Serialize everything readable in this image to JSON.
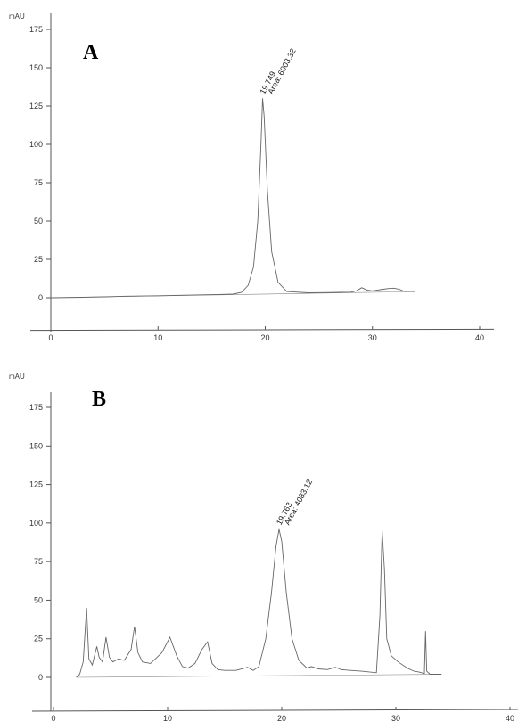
{
  "chart_data": [
    {
      "type": "line",
      "panel_label": "A",
      "y_unit": "mAU",
      "xlim": [
        0,
        40
      ],
      "ylim": [
        -10,
        185
      ],
      "x_ticks": [
        0,
        10,
        20,
        30,
        40
      ],
      "y_ticks": [
        0,
        25,
        50,
        75,
        100,
        125,
        150,
        175
      ],
      "peak_annotations": [
        {
          "rt": "19.749",
          "area": "Area: 6003.32",
          "x": 19.749,
          "y": 130
        }
      ],
      "series": [
        {
          "x": [
            0,
            3,
            5,
            7,
            10,
            13,
            15,
            17,
            17.8,
            18.4,
            18.9,
            19.3,
            19.6,
            19.749,
            19.9,
            20.2,
            20.6,
            21.2,
            22,
            24,
            26,
            28,
            28.5,
            29,
            29.5,
            30,
            31,
            31.5,
            32,
            32.5,
            33,
            34
          ],
          "y": [
            0,
            0.3,
            0.6,
            1.0,
            1.3,
            1.7,
            2.0,
            2.3,
            3.5,
            8,
            20,
            50,
            100,
            130,
            118,
            70,
            30,
            10,
            4,
            3.2,
            3.4,
            3.6,
            4.5,
            6.5,
            5,
            4.5,
            5.5,
            6,
            6.2,
            5.5,
            4,
            4
          ]
        }
      ]
    },
    {
      "type": "line",
      "panel_label": "B",
      "y_unit": "mAU",
      "xlim": [
        0,
        40
      ],
      "ylim": [
        -10,
        185
      ],
      "x_ticks": [
        0,
        10,
        20,
        30,
        40
      ],
      "y_ticks": [
        0,
        25,
        50,
        75,
        100,
        125,
        150,
        175
      ],
      "peak_annotations": [
        {
          "rt": "19.763",
          "area": "Area: 4083.12",
          "x": 19.763,
          "y": 96
        }
      ],
      "series": [
        {
          "x": [
            2,
            2.3,
            2.6,
            2.9,
            3.1,
            3.4,
            3.8,
            4.0,
            4.3,
            4.6,
            4.9,
            5.2,
            5.7,
            6.2,
            6.8,
            7.1,
            7.4,
            7.8,
            8.5,
            9.5,
            10.2,
            10.8,
            11.3,
            11.8,
            12.4,
            13.0,
            13.5,
            13.9,
            14.4,
            15,
            16,
            17,
            17.5,
            18.0,
            18.6,
            19.1,
            19.5,
            19.763,
            20.0,
            20.4,
            20.9,
            21.5,
            22.2,
            22.6,
            23.2,
            24,
            24.7,
            25.2,
            26,
            27,
            28.3,
            28.6,
            28.8,
            29.0,
            29.2,
            29.6,
            30.2,
            31,
            31.6,
            32,
            32.5,
            32.6,
            32.7,
            33,
            34
          ],
          "y": [
            0,
            2,
            10,
            45,
            12,
            8,
            20,
            13,
            10,
            26,
            13,
            10,
            12,
            11,
            18,
            33,
            16,
            10,
            9,
            16,
            26,
            14,
            7,
            6,
            9,
            18,
            23,
            9,
            5,
            4.5,
            4.5,
            6.5,
            4.5,
            7,
            25,
            55,
            85,
            96,
            88,
            55,
            25,
            11,
            6,
            7,
            5.5,
            5,
            6.5,
            5,
            4.5,
            4,
            3,
            40,
            95,
            70,
            25,
            14,
            10,
            6,
            4,
            3.5,
            2.5,
            30,
            4,
            2,
            2
          ]
        }
      ]
    }
  ]
}
